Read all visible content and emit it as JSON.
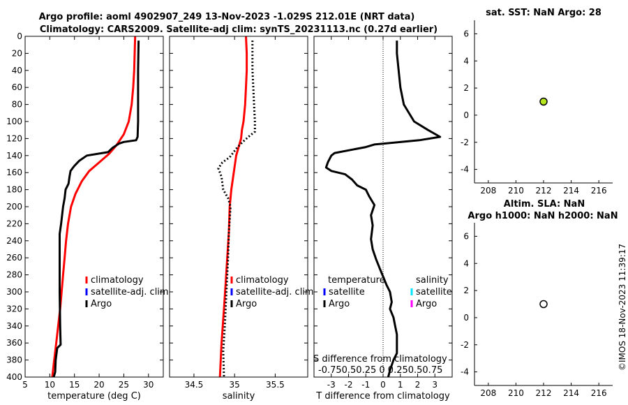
{
  "figure": {
    "title_line1": "Argo profile: aoml 4902907_249 13-Nov-2023 -1.029S 212.01E (NRT data)",
    "title_line2": "Climatology: CARS2009. Satellite-adj clim: synTS_20231113.nc (0.27d earlier)",
    "timestamp": "©IMOS 18-Nov-2023 11:39:17"
  },
  "colors": {
    "climatology": "#ff0000",
    "satellite_adj": "#0000ff",
    "argo": "#000000",
    "satellite_salinity": "#00e5ff",
    "argo_salinity": "#ff00ff",
    "sst_marker": "#b5e61d",
    "sla_marker": "#ffffff"
  },
  "chart_data": [
    {
      "id": "temperature",
      "type": "line",
      "xlabel": "temperature (deg C)",
      "xlim": [
        5,
        33
      ],
      "xticks": [
        5,
        10,
        15,
        20,
        25,
        30
      ],
      "ylim": [
        0,
        400
      ],
      "yticks": [
        0,
        20,
        40,
        60,
        80,
        100,
        120,
        140,
        160,
        180,
        200,
        220,
        240,
        260,
        280,
        300,
        320,
        340,
        360,
        380,
        400
      ],
      "legend": [
        "climatology",
        "satellite-adj. clim",
        "Argo"
      ],
      "series": [
        {
          "name": "climatology",
          "color": "#ff0000",
          "dashed": false,
          "points": [
            [
              27.3,
              0
            ],
            [
              27.2,
              20
            ],
            [
              27.1,
              40
            ],
            [
              26.9,
              60
            ],
            [
              26.6,
              80
            ],
            [
              26.0,
              100
            ],
            [
              25.0,
              115
            ],
            [
              23.5,
              128
            ],
            [
              22.0,
              138
            ],
            [
              20.0,
              148
            ],
            [
              18.0,
              158
            ],
            [
              16.5,
              170
            ],
            [
              15.2,
              185
            ],
            [
              14.3,
              200
            ],
            [
              13.7,
              220
            ],
            [
              13.3,
              240
            ],
            [
              13.0,
              260
            ],
            [
              12.7,
              280
            ],
            [
              12.4,
              300
            ],
            [
              12.1,
              320
            ],
            [
              11.7,
              340
            ],
            [
              11.3,
              360
            ],
            [
              10.9,
              380
            ],
            [
              10.5,
              400
            ]
          ]
        },
        {
          "name": "Argo",
          "color": "#000000",
          "dashed": false,
          "points": [
            [
              28.0,
              5
            ],
            [
              27.9,
              40
            ],
            [
              27.9,
              80
            ],
            [
              27.9,
              100
            ],
            [
              27.8,
              118
            ],
            [
              27.5,
              122
            ],
            [
              25.0,
              124
            ],
            [
              24.0,
              126
            ],
            [
              22.7,
              131
            ],
            [
              21.8,
              136
            ],
            [
              17.5,
              140
            ],
            [
              16.0,
              146
            ],
            [
              15.0,
              152
            ],
            [
              14.2,
              158
            ],
            [
              14.0,
              165
            ],
            [
              13.8,
              173
            ],
            [
              13.2,
              180
            ],
            [
              13.0,
              190
            ],
            [
              12.7,
              200
            ],
            [
              12.5,
              210
            ],
            [
              12.3,
              220
            ],
            [
              12.0,
              232
            ],
            [
              12.0,
              300
            ],
            [
              12.1,
              340
            ],
            [
              12.2,
              362
            ],
            [
              11.5,
              366
            ],
            [
              11.2,
              380
            ],
            [
              11.1,
              394
            ],
            [
              10.8,
              400
            ]
          ]
        }
      ]
    },
    {
      "id": "salinity",
      "type": "line",
      "xlabel": "salinity",
      "xlim": [
        34.2,
        35.9
      ],
      "xticks": [
        34.5,
        35,
        35.5
      ],
      "xticklabels": [
        "34.5",
        "35",
        "35.5"
      ],
      "ylim": [
        0,
        400
      ],
      "legend": [
        "climatology",
        "satellite-adj. clim",
        "Argo"
      ],
      "series": [
        {
          "name": "climatology",
          "color": "#ff0000",
          "dashed": false,
          "points": [
            [
              35.14,
              0
            ],
            [
              35.15,
              20
            ],
            [
              35.15,
              40
            ],
            [
              35.14,
              60
            ],
            [
              35.13,
              80
            ],
            [
              35.11,
              100
            ],
            [
              35.09,
              110
            ],
            [
              35.08,
              120
            ],
            [
              35.05,
              130
            ],
            [
              35.02,
              140
            ],
            [
              34.99,
              160
            ],
            [
              34.96,
              180
            ],
            [
              34.94,
              200
            ],
            [
              34.93,
              230
            ],
            [
              34.91,
              260
            ],
            [
              34.89,
              290
            ],
            [
              34.87,
              320
            ],
            [
              34.84,
              360
            ],
            [
              34.82,
              400
            ]
          ]
        },
        {
          "name": "Argo",
          "color": "#000000",
          "dashed": true,
          "points": [
            [
              35.22,
              5
            ],
            [
              35.22,
              20
            ],
            [
              35.22,
              40
            ],
            [
              35.23,
              60
            ],
            [
              35.24,
              80
            ],
            [
              35.25,
              100
            ],
            [
              35.25,
              112
            ],
            [
              35.17,
              118
            ],
            [
              35.1,
              124
            ],
            [
              35.02,
              132
            ],
            [
              34.94,
              142
            ],
            [
              34.85,
              148
            ],
            [
              34.8,
              155
            ],
            [
              34.84,
              165
            ],
            [
              34.86,
              180
            ],
            [
              34.92,
              190
            ],
            [
              34.95,
              200
            ],
            [
              34.93,
              230
            ],
            [
              34.92,
              260
            ],
            [
              34.9,
              300
            ],
            [
              34.88,
              340
            ],
            [
              34.86,
              370
            ],
            [
              34.87,
              400
            ]
          ]
        }
      ]
    },
    {
      "id": "difference",
      "type": "line",
      "xlabel": "T difference from climatology",
      "xlabel_top": "S difference from climatology",
      "xlim": [
        -4,
        4
      ],
      "xticks": [
        -3,
        -2,
        -1,
        0,
        1,
        2,
        3
      ],
      "top_tick_labels": "-0.750.50.25  0  0.250.50.75",
      "ylim": [
        0,
        400
      ],
      "legend_headers": [
        "temperature",
        "salinity"
      ],
      "legend_temperature": [
        "satellite",
        "Argo"
      ],
      "legend_salinity": [
        "satellite",
        "Argo"
      ],
      "series": [
        {
          "name": "T difference",
          "color": "#000000",
          "dashed": false,
          "points": [
            [
              0.8,
              5
            ],
            [
              0.8,
              20
            ],
            [
              0.9,
              40
            ],
            [
              1.0,
              60
            ],
            [
              1.2,
              80
            ],
            [
              1.8,
              100
            ],
            [
              2.6,
              110
            ],
            [
              3.3,
              118
            ],
            [
              2.1,
              122
            ],
            [
              0.0,
              126
            ],
            [
              -0.5,
              127
            ],
            [
              -1.0,
              130
            ],
            [
              -2.8,
              137
            ],
            [
              -3.0,
              140
            ],
            [
              -3.2,
              148
            ],
            [
              -3.3,
              154
            ],
            [
              -3.0,
              158
            ],
            [
              -2.2,
              162
            ],
            [
              -1.8,
              168
            ],
            [
              -1.5,
              175
            ],
            [
              -1.0,
              180
            ],
            [
              -0.8,
              188
            ],
            [
              -0.5,
              198
            ],
            [
              -0.7,
              210
            ],
            [
              -0.6,
              222
            ],
            [
              -0.7,
              238
            ],
            [
              -0.6,
              250
            ],
            [
              -0.4,
              262
            ],
            [
              -0.2,
              272
            ],
            [
              0.0,
              282
            ],
            [
              0.2,
              292
            ],
            [
              0.4,
              300
            ],
            [
              0.5,
              312
            ],
            [
              0.4,
              320
            ],
            [
              0.6,
              330
            ],
            [
              0.7,
              340
            ],
            [
              0.8,
              350
            ],
            [
              0.8,
              360
            ],
            [
              0.8,
              372
            ],
            [
              0.6,
              380
            ],
            [
              0.4,
              392
            ],
            [
              0.3,
              400
            ]
          ]
        }
      ]
    },
    {
      "id": "sst",
      "type": "scatter",
      "title": "sat.  SST: NaN Argo: 28",
      "xlim": [
        207,
        217
      ],
      "xticks": [
        208,
        210,
        212,
        214,
        216
      ],
      "ylim": [
        -5,
        7
      ],
      "yticks": [
        -4,
        -2,
        0,
        2,
        4,
        6
      ],
      "points": [
        [
          212,
          1
        ]
      ],
      "marker_color": "#b5e61d"
    },
    {
      "id": "sla",
      "type": "scatter",
      "title_line1": "Altim. SLA: NaN",
      "title_line2": "Argo h1000: NaN h2000: NaN",
      "xlim": [
        207,
        217
      ],
      "xticks": [
        208,
        210,
        212,
        214,
        216
      ],
      "ylim": [
        -5,
        7
      ],
      "yticks": [
        -4,
        -2,
        0,
        2,
        4,
        6
      ],
      "points": [
        [
          212,
          1
        ]
      ],
      "marker_color": "#ffffff"
    }
  ]
}
